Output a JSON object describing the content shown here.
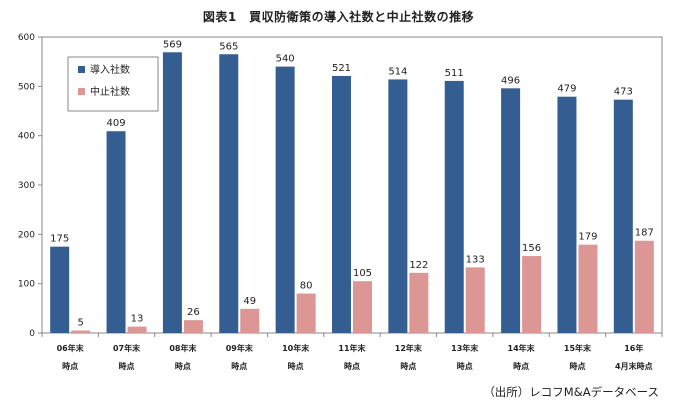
{
  "chart_data": {
    "type": "bar",
    "title": "図表1　買収防衛策の導入社数と中止社数の推移",
    "source": "（出所）レコフM&Aデータベース",
    "categories": [
      [
        "06年末",
        "時点"
      ],
      [
        "07年末",
        "時点"
      ],
      [
        "08年末",
        "時点"
      ],
      [
        "09年末",
        "時点"
      ],
      [
        "10年末",
        "時点"
      ],
      [
        "11年末",
        "時点"
      ],
      [
        "12年末",
        "時点"
      ],
      [
        "13年末",
        "時点"
      ],
      [
        "14年末",
        "時点"
      ],
      [
        "15年末",
        "時点"
      ],
      [
        "16年",
        "4月末時点"
      ]
    ],
    "series": [
      {
        "name": "導入社数",
        "color": "#345d91",
        "values": [
          175,
          409,
          569,
          565,
          540,
          521,
          514,
          511,
          496,
          479,
          473
        ]
      },
      {
        "name": "中止社数",
        "color": "#dc9694",
        "values": [
          5,
          13,
          26,
          49,
          80,
          105,
          122,
          133,
          156,
          179,
          187
        ]
      }
    ],
    "ylim": [
      0,
      600
    ],
    "yticks": [
      0,
      100,
      200,
      300,
      400,
      500,
      600
    ],
    "legend": "top-left",
    "grid": false
  }
}
